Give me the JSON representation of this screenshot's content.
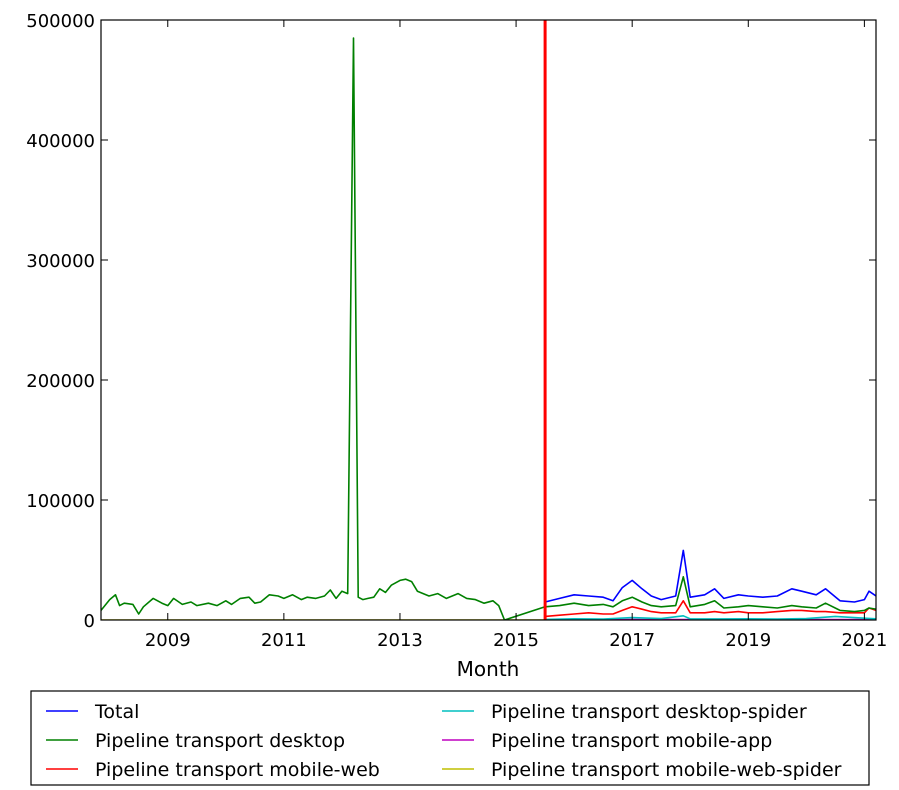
{
  "chart_data": {
    "type": "line",
    "title": "",
    "xlabel": "Month",
    "ylabel": "",
    "xlim": [
      2007.85,
      2021.2
    ],
    "ylim": [
      0,
      500000
    ],
    "x_ticks": [
      2009,
      2011,
      2013,
      2015,
      2017,
      2019,
      2021
    ],
    "x_tick_labels": [
      "2009",
      "2011",
      "2013",
      "2015",
      "2017",
      "2019",
      "2021"
    ],
    "y_ticks": [
      0,
      100000,
      200000,
      300000,
      400000,
      500000
    ],
    "y_tick_labels": [
      "0",
      "100000",
      "200000",
      "300000",
      "400000",
      "500000"
    ],
    "grid": false,
    "legend_position": "bottom",
    "vertical_marker": {
      "x": 2015.5,
      "color": "#ff0000"
    },
    "series": [
      {
        "name": "Total",
        "color": "#0000ff",
        "x": [
          2015.5,
          2015.75,
          2016.0,
          2016.25,
          2016.5,
          2016.67,
          2016.83,
          2017.0,
          2017.17,
          2017.33,
          2017.5,
          2017.75,
          2017.88,
          2018.0,
          2018.25,
          2018.42,
          2018.58,
          2018.83,
          2019.0,
          2019.25,
          2019.5,
          2019.75,
          2019.92,
          2020.17,
          2020.33,
          2020.58,
          2020.83,
          2021.0,
          2021.08,
          2021.2
        ],
        "y": [
          15000,
          18000,
          21000,
          20000,
          19000,
          16000,
          27000,
          33000,
          26000,
          20000,
          17000,
          20000,
          58000,
          19000,
          21000,
          26000,
          18000,
          21000,
          20000,
          19000,
          20000,
          26000,
          24000,
          21000,
          26000,
          16000,
          15000,
          17000,
          24000,
          20000
        ]
      },
      {
        "name": "Pipeline transport desktop",
        "color": "#008000",
        "x": [
          2007.85,
          2008.0,
          2008.1,
          2008.17,
          2008.25,
          2008.4,
          2008.5,
          2008.58,
          2008.75,
          2008.9,
          2009.0,
          2009.1,
          2009.25,
          2009.4,
          2009.5,
          2009.7,
          2009.85,
          2010.0,
          2010.1,
          2010.25,
          2010.4,
          2010.5,
          2010.6,
          2010.75,
          2010.9,
          2011.0,
          2011.15,
          2011.3,
          2011.4,
          2011.55,
          2011.7,
          2011.8,
          2011.9,
          2012.0,
          2012.1,
          2012.2,
          2012.28,
          2012.36,
          2012.45,
          2012.55,
          2012.65,
          2012.75,
          2012.85,
          2013.0,
          2013.1,
          2013.2,
          2013.3,
          2013.5,
          2013.65,
          2013.8,
          2013.9,
          2014.0,
          2014.15,
          2014.3,
          2014.45,
          2014.6,
          2014.7,
          2014.8,
          2015.5,
          2015.75,
          2016.0,
          2016.25,
          2016.5,
          2016.67,
          2016.83,
          2017.0,
          2017.17,
          2017.33,
          2017.5,
          2017.75,
          2017.88,
          2018.0,
          2018.25,
          2018.42,
          2018.58,
          2018.83,
          2019.0,
          2019.25,
          2019.5,
          2019.75,
          2019.92,
          2020.17,
          2020.33,
          2020.58,
          2020.83,
          2021.0,
          2021.08,
          2021.2
        ],
        "y": [
          8000,
          17000,
          21000,
          12000,
          14000,
          13000,
          5000,
          11000,
          18000,
          14000,
          12000,
          18000,
          13000,
          15000,
          12000,
          14000,
          12000,
          16000,
          13000,
          18000,
          19000,
          14000,
          15000,
          21000,
          20000,
          18000,
          21000,
          17000,
          19000,
          18000,
          20000,
          25000,
          18000,
          24000,
          22000,
          485000,
          19000,
          17000,
          18000,
          19000,
          26000,
          23000,
          29000,
          33000,
          34000,
          32000,
          24000,
          20000,
          22000,
          18000,
          20000,
          22000,
          18000,
          17000,
          14000,
          16000,
          12000,
          0,
          11000,
          12000,
          14000,
          12000,
          13000,
          11000,
          16000,
          19000,
          15000,
          12000,
          11000,
          12000,
          36000,
          11000,
          13000,
          16000,
          10000,
          11000,
          12000,
          11000,
          10000,
          12000,
          11000,
          10000,
          14000,
          8000,
          7000,
          8000,
          10000,
          9000
        ]
      },
      {
        "name": "Pipeline transport mobile-web",
        "color": "#ff0000",
        "x": [
          2015.5,
          2015.75,
          2016.0,
          2016.25,
          2016.5,
          2016.67,
          2016.83,
          2017.0,
          2017.17,
          2017.33,
          2017.5,
          2017.75,
          2017.88,
          2018.0,
          2018.25,
          2018.42,
          2018.58,
          2018.83,
          2019.0,
          2019.25,
          2019.5,
          2019.75,
          2019.92,
          2020.17,
          2020.33,
          2020.58,
          2020.83,
          2021.0,
          2021.08,
          2021.2
        ],
        "y": [
          3000,
          4000,
          5000,
          6000,
          5000,
          5000,
          8000,
          11000,
          9000,
          7000,
          6000,
          6000,
          16000,
          6000,
          6000,
          7000,
          6000,
          7000,
          6000,
          6000,
          7000,
          8000,
          8000,
          7000,
          7000,
          6000,
          6000,
          6000,
          10000,
          8000
        ]
      },
      {
        "name": "Pipeline transport desktop-spider",
        "color": "#00bfbf",
        "x": [
          2015.5,
          2016.0,
          2016.5,
          2017.0,
          2017.5,
          2017.88,
          2018.0,
          2018.5,
          2019.0,
          2019.5,
          2020.0,
          2020.5,
          2021.0,
          2021.2
        ],
        "y": [
          500,
          1000,
          800,
          2000,
          1200,
          3500,
          1000,
          900,
          1000,
          800,
          1200,
          3000,
          1500,
          1000
        ]
      },
      {
        "name": "Pipeline transport mobile-app",
        "color": "#bf00bf",
        "x": [
          2015.5,
          2016.5,
          2017.5,
          2018.5,
          2019.5,
          2020.5,
          2021.2
        ],
        "y": [
          200,
          300,
          300,
          300,
          300,
          300,
          300
        ]
      },
      {
        "name": "Pipeline transport mobile-web-spider",
        "color": "#bfbf00",
        "x": [
          2007.85,
          2015.5,
          2016.5,
          2017.5,
          2018.5,
          2019.5,
          2020.5,
          2021.2
        ],
        "y": [
          0,
          0,
          100,
          100,
          100,
          100,
          100,
          100
        ]
      }
    ]
  }
}
